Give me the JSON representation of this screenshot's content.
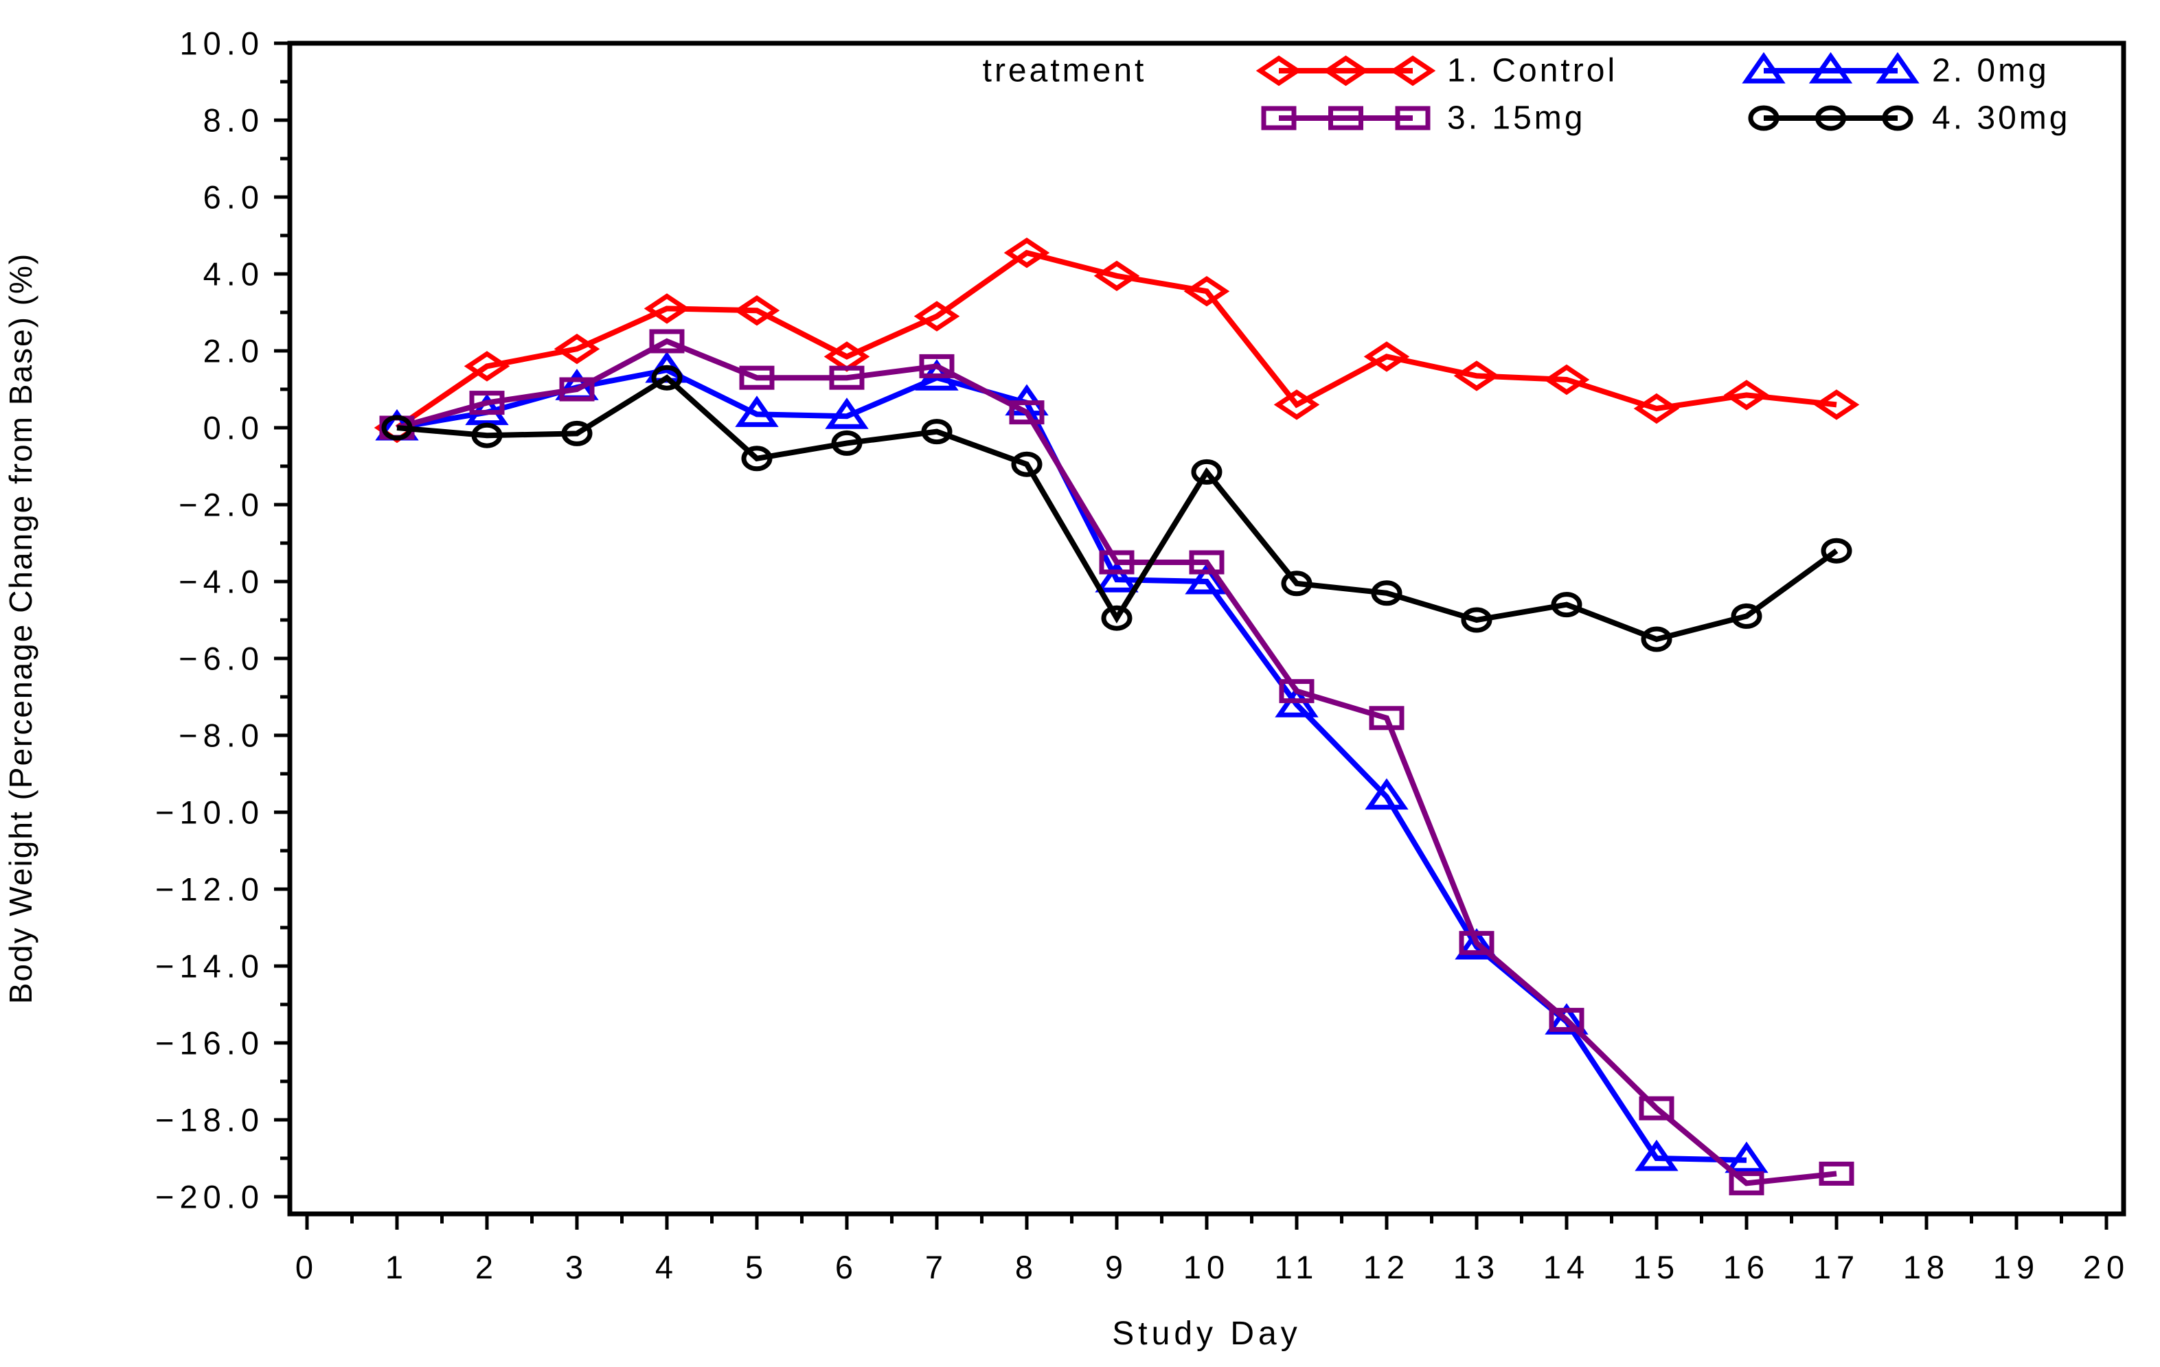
{
  "chart_data": {
    "type": "line",
    "title": "",
    "legend_title": "treatment",
    "xlabel": "Study Day",
    "ylabel": "Body Weight (Percenage Change from Base) (%)",
    "xlim": [
      0,
      20
    ],
    "ylim": [
      -20,
      10
    ],
    "grid": false,
    "legend_position": "top-right-inside, 2 columns, no border",
    "background_color": "#FFFFFF",
    "axis_color": "#000000",
    "x_minor_tick_step": 0.5,
    "y_minor_tick_step": 1,
    "x_ticks": [
      {
        "value": 0,
        "label": "0"
      },
      {
        "value": 1,
        "label": "1"
      },
      {
        "value": 2,
        "label": "2"
      },
      {
        "value": 3,
        "label": "3"
      },
      {
        "value": 4,
        "label": "4"
      },
      {
        "value": 5,
        "label": "5"
      },
      {
        "value": 6,
        "label": "6"
      },
      {
        "value": 7,
        "label": "7"
      },
      {
        "value": 8,
        "label": "8"
      },
      {
        "value": 9,
        "label": "9"
      },
      {
        "value": 10,
        "label": "10"
      },
      {
        "value": 11,
        "label": "11"
      },
      {
        "value": 12,
        "label": "12"
      },
      {
        "value": 13,
        "label": "13"
      },
      {
        "value": 14,
        "label": "14"
      },
      {
        "value": 15,
        "label": "15"
      },
      {
        "value": 16,
        "label": "16"
      },
      {
        "value": 17,
        "label": "17"
      },
      {
        "value": 18,
        "label": "18"
      },
      {
        "value": 19,
        "label": "19"
      },
      {
        "value": 20,
        "label": "20"
      }
    ],
    "y_ticks": [
      {
        "value": 10,
        "label": "10.0"
      },
      {
        "value": 8,
        "label": "8.0"
      },
      {
        "value": 6,
        "label": "6.0"
      },
      {
        "value": 4,
        "label": "4.0"
      },
      {
        "value": 2,
        "label": "2.0"
      },
      {
        "value": 0,
        "label": "0.0"
      },
      {
        "value": -2,
        "label": "−2.0"
      },
      {
        "value": -4,
        "label": "−4.0"
      },
      {
        "value": -6,
        "label": "−6.0"
      },
      {
        "value": -8,
        "label": "−8.0"
      },
      {
        "value": -10,
        "label": "−10.0"
      },
      {
        "value": -12,
        "label": "−12.0"
      },
      {
        "value": -14,
        "label": "−14.0"
      },
      {
        "value": -16,
        "label": "−16.0"
      },
      {
        "value": -18,
        "label": "−18.0"
      },
      {
        "value": -20,
        "label": "−20.0"
      }
    ],
    "series": [
      {
        "name": "1. Control",
        "marker": "diamond",
        "color": "#FF0000",
        "days": [
          1,
          2,
          3,
          4,
          5,
          6,
          7,
          8,
          9,
          10,
          11,
          12,
          13,
          14,
          15,
          16,
          17
        ],
        "values": [
          0.0,
          1.6,
          2.05,
          3.1,
          3.05,
          1.85,
          2.9,
          4.55,
          3.95,
          3.55,
          0.6,
          1.85,
          1.35,
          1.25,
          0.5,
          0.85,
          0.6
        ]
      },
      {
        "name": "2. 0mg",
        "marker": "triangle",
        "color": "#0000FF",
        "days": [
          1,
          2,
          3,
          4,
          5,
          6,
          7,
          8,
          9,
          10,
          11,
          12,
          13,
          14,
          15,
          16
        ],
        "values": [
          0.0,
          0.4,
          1.05,
          1.5,
          0.35,
          0.3,
          1.3,
          0.65,
          -3.95,
          -4.0,
          -7.2,
          -9.6,
          -13.5,
          -15.45,
          -19.0,
          -19.05
        ]
      },
      {
        "name": "3. 15mg",
        "marker": "square",
        "color": "#7F007F",
        "days": [
          1,
          2,
          3,
          4,
          5,
          6,
          7,
          8,
          9,
          10,
          11,
          12,
          13,
          14,
          15,
          16,
          17
        ],
        "values": [
          0.0,
          0.65,
          1.0,
          2.25,
          1.3,
          1.3,
          1.6,
          0.4,
          -3.5,
          -3.5,
          -6.85,
          -7.55,
          -13.4,
          -15.4,
          -17.7,
          -19.65,
          -19.4
        ]
      },
      {
        "name": "4. 30mg",
        "marker": "circle",
        "color": "#000000",
        "days": [
          1,
          2,
          3,
          4,
          5,
          6,
          7,
          8,
          9,
          10,
          11,
          12,
          13,
          14,
          15,
          16,
          17
        ],
        "values": [
          0.0,
          -0.2,
          -0.15,
          1.3,
          -0.8,
          -0.4,
          -0.1,
          -0.95,
          -4.95,
          -1.15,
          -4.05,
          -4.3,
          -5.0,
          -4.6,
          -5.5,
          -4.9,
          -3.2
        ]
      }
    ],
    "legend_rows": [
      [
        "1. Control",
        "2. 0mg"
      ],
      [
        "3. 15mg",
        "4. 30mg"
      ]
    ]
  }
}
